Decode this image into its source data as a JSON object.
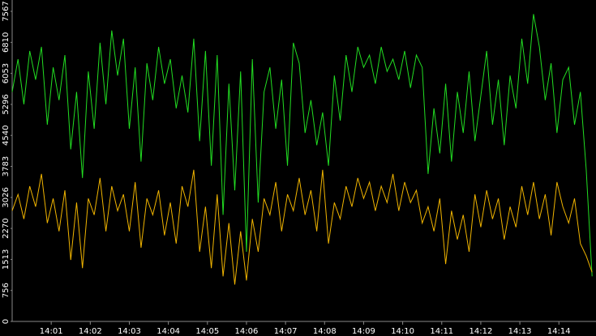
{
  "chart_data": {
    "type": "line",
    "x": [
      0,
      0.15,
      0.3,
      0.45,
      0.6,
      0.75,
      0.9,
      1.05,
      1.2,
      1.35,
      1.5,
      1.65,
      1.8,
      1.95,
      2.1,
      2.25,
      2.4,
      2.55,
      2.7,
      2.85,
      3,
      3.15,
      3.3,
      3.45,
      3.6,
      3.75,
      3.9,
      4.05,
      4.2,
      4.35,
      4.5,
      4.65,
      4.8,
      4.95,
      5.1,
      5.25,
      5.4,
      5.55,
      5.7,
      5.85,
      6,
      6.15,
      6.3,
      6.45,
      6.6,
      6.75,
      6.9,
      7.05,
      7.2,
      7.35,
      7.5,
      7.65,
      7.8,
      7.95,
      8.1,
      8.25,
      8.4,
      8.55,
      8.7,
      8.85,
      9,
      9.15,
      9.3,
      9.45,
      9.6,
      9.75,
      9.9,
      10.05,
      10.2,
      10.35,
      10.5,
      10.65,
      10.8,
      10.95,
      11.1,
      11.25,
      11.4,
      11.55,
      11.7,
      11.85,
      12,
      12.15,
      12.3,
      12.45,
      12.6,
      12.75,
      12.9,
      13.05,
      13.2,
      13.35,
      13.5,
      13.65,
      13.8,
      13.95,
      14.1,
      14.25,
      14.4,
      14.55,
      14.7,
      14.85
    ],
    "series": [
      {
        "color": "#22dd22",
        "values": [
          5600,
          6400,
          5300,
          6600,
          5900,
          6700,
          4800,
          6200,
          5400,
          6500,
          4200,
          5600,
          3500,
          6100,
          4700,
          6800,
          5300,
          7100,
          6000,
          6900,
          4700,
          6200,
          3900,
          6300,
          5400,
          6700,
          5800,
          6400,
          5200,
          6000,
          5100,
          6900,
          4400,
          6600,
          3800,
          6500,
          2600,
          5800,
          3200,
          6100,
          1700,
          6400,
          2900,
          5600,
          6200,
          4700,
          5900,
          3800,
          6800,
          6300,
          4600,
          5400,
          4300,
          5100,
          3800,
          6000,
          4900,
          6500,
          5600,
          6700,
          6200,
          6500,
          5800,
          6700,
          6100,
          6400,
          5900,
          6600,
          5700,
          6500,
          6200,
          3600,
          5200,
          4100,
          5800,
          3900,
          5600,
          4600,
          6100,
          4400,
          5500,
          6600,
          4800,
          5900,
          4300,
          6000,
          5200,
          6900,
          5800,
          7500,
          6700,
          5400,
          6300,
          4600,
          5900,
          6200,
          4800,
          5600,
          3700,
          1100
        ]
      },
      {
        "color": "#f0b400",
        "values": [
          2700,
          3100,
          2500,
          3300,
          2800,
          3600,
          2400,
          3000,
          2200,
          3200,
          1500,
          2900,
          1300,
          3000,
          2600,
          3500,
          2200,
          3300,
          2700,
          3100,
          2200,
          3400,
          1800,
          3000,
          2600,
          3200,
          2100,
          2900,
          1900,
          3300,
          2800,
          3700,
          1700,
          2800,
          1300,
          3100,
          1100,
          2400,
          900,
          2200,
          1000,
          2500,
          1700,
          3000,
          2600,
          3400,
          2200,
          3100,
          2700,
          3500,
          2600,
          3200,
          2200,
          3700,
          1900,
          2900,
          2500,
          3300,
          2800,
          3500,
          3000,
          3400,
          2700,
          3300,
          2900,
          3600,
          2700,
          3400,
          2900,
          3200,
          2400,
          2800,
          2200,
          3000,
          1400,
          2700,
          2000,
          2600,
          1700,
          3100,
          2300,
          3200,
          2500,
          3000,
          2000,
          2800,
          2300,
          3300,
          2600,
          3400,
          2500,
          3100,
          2100,
          3400,
          2800,
          2400,
          3000,
          1900,
          1600,
          1200
        ]
      }
    ],
    "xlim": [
      0,
      14.95
    ],
    "xticks": [
      {
        "value": 1,
        "label": "14:01"
      },
      {
        "value": 2,
        "label": "14:02"
      },
      {
        "value": 3,
        "label": "14:03"
      },
      {
        "value": 4,
        "label": "14:04"
      },
      {
        "value": 5,
        "label": "14:05"
      },
      {
        "value": 6,
        "label": "14:06"
      },
      {
        "value": 7,
        "label": "14:07"
      },
      {
        "value": 8,
        "label": "14:08"
      },
      {
        "value": 9,
        "label": "14:09"
      },
      {
        "value": 10,
        "label": "14:10"
      },
      {
        "value": 11,
        "label": "14:11"
      },
      {
        "value": 12,
        "label": "14:12"
      },
      {
        "value": 13,
        "label": "14:13"
      },
      {
        "value": 14,
        "label": "14:14"
      }
    ],
    "ylim": [
      0,
      7844
    ],
    "yticks": [
      0,
      756,
      1513,
      2270,
      3026,
      3783,
      4540,
      5296,
      6053,
      6810,
      7567
    ]
  }
}
